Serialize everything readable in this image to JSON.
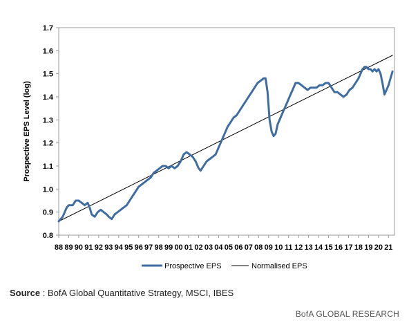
{
  "chart_data": {
    "type": "line",
    "ylabel": "Prospective EPS Level (log)",
    "xlabel": "",
    "ylim": [
      0.8,
      1.7
    ],
    "yticks": [
      "0.8",
      "0.9",
      "1.0",
      "1.1",
      "1.2",
      "1.3",
      "1.4",
      "1.5",
      "1.6",
      "1.7"
    ],
    "xticks": [
      "88",
      "89",
      "90",
      "91",
      "92",
      "93",
      "94",
      "95",
      "96",
      "97",
      "98",
      "99",
      "00",
      "01",
      "02",
      "03",
      "04",
      "05",
      "06",
      "07",
      "08",
      "09",
      "10",
      "11",
      "12",
      "13",
      "14",
      "15",
      "16",
      "17",
      "18",
      "19",
      "20",
      "21"
    ],
    "grid": false,
    "legend_position": "bottom",
    "series": [
      {
        "name": "Prospective EPS",
        "color": "#3f6da2",
        "x": [
          1988.0,
          1988.4,
          1988.8,
          1989.0,
          1989.4,
          1989.7,
          1990.0,
          1990.3,
          1990.6,
          1990.9,
          1991.1,
          1991.3,
          1991.6,
          1991.9,
          1992.2,
          1992.5,
          1992.8,
          1993.0,
          1993.3,
          1993.6,
          1993.9,
          1994.2,
          1994.5,
          1994.8,
          1995.1,
          1995.4,
          1995.7,
          1996.0,
          1996.3,
          1996.6,
          1996.9,
          1997.2,
          1997.5,
          1997.8,
          1998.1,
          1998.4,
          1998.7,
          1999.0,
          1999.3,
          1999.6,
          1999.9,
          2000.2,
          2000.5,
          2000.8,
          2001.1,
          2001.4,
          2001.7,
          2002.0,
          2002.2,
          2002.5,
          2002.8,
          2003.1,
          2003.4,
          2003.7,
          2004.0,
          2004.3,
          2004.6,
          2004.9,
          2005.2,
          2005.5,
          2005.8,
          2006.1,
          2006.4,
          2006.7,
          2007.0,
          2007.3,
          2007.6,
          2007.9,
          2008.2,
          2008.5,
          2008.7,
          2008.9,
          2009.1,
          2009.3,
          2009.5,
          2009.7,
          2009.9,
          2010.2,
          2010.5,
          2010.8,
          2011.1,
          2011.4,
          2011.7,
          2012.0,
          2012.3,
          2012.6,
          2012.9,
          2013.2,
          2013.5,
          2013.8,
          2014.1,
          2014.4,
          2014.7,
          2015.0,
          2015.3,
          2015.6,
          2015.9,
          2016.2,
          2016.5,
          2016.8,
          2017.1,
          2017.4,
          2017.7,
          2018.0,
          2018.2,
          2018.4,
          2018.6,
          2018.8,
          2019.0,
          2019.2,
          2019.4,
          2019.6,
          2019.8,
          2020.0,
          2020.2,
          2020.4,
          2020.6,
          2020.8,
          2021.0,
          2021.2,
          2021.4
        ],
        "values": [
          0.86,
          0.88,
          0.92,
          0.93,
          0.93,
          0.95,
          0.95,
          0.94,
          0.93,
          0.94,
          0.92,
          0.89,
          0.88,
          0.9,
          0.91,
          0.9,
          0.89,
          0.88,
          0.87,
          0.89,
          0.9,
          0.91,
          0.92,
          0.93,
          0.95,
          0.97,
          0.99,
          1.01,
          1.02,
          1.03,
          1.04,
          1.05,
          1.07,
          1.08,
          1.09,
          1.1,
          1.1,
          1.09,
          1.1,
          1.09,
          1.1,
          1.12,
          1.15,
          1.16,
          1.15,
          1.14,
          1.12,
          1.09,
          1.08,
          1.1,
          1.12,
          1.13,
          1.14,
          1.15,
          1.18,
          1.21,
          1.24,
          1.27,
          1.29,
          1.31,
          1.32,
          1.34,
          1.36,
          1.38,
          1.4,
          1.42,
          1.44,
          1.46,
          1.47,
          1.48,
          1.48,
          1.42,
          1.3,
          1.25,
          1.23,
          1.24,
          1.28,
          1.31,
          1.34,
          1.37,
          1.4,
          1.43,
          1.46,
          1.46,
          1.45,
          1.44,
          1.43,
          1.44,
          1.44,
          1.44,
          1.45,
          1.45,
          1.46,
          1.46,
          1.44,
          1.42,
          1.42,
          1.41,
          1.4,
          1.41,
          1.43,
          1.44,
          1.46,
          1.48,
          1.5,
          1.52,
          1.53,
          1.53,
          1.52,
          1.52,
          1.51,
          1.52,
          1.51,
          1.52,
          1.5,
          1.46,
          1.41,
          1.43,
          1.45,
          1.48,
          1.51
        ]
      },
      {
        "name": "Normalised EPS",
        "color": "#000000",
        "x": [
          1988.0,
          2021.4
        ],
        "values": [
          0.86,
          1.58
        ]
      }
    ]
  },
  "source": {
    "label": "Source",
    "text": ": BofA Global Quantitative Strategy, MSCI, IBES"
  },
  "footer": "BofA GLOBAL RESEARCH"
}
